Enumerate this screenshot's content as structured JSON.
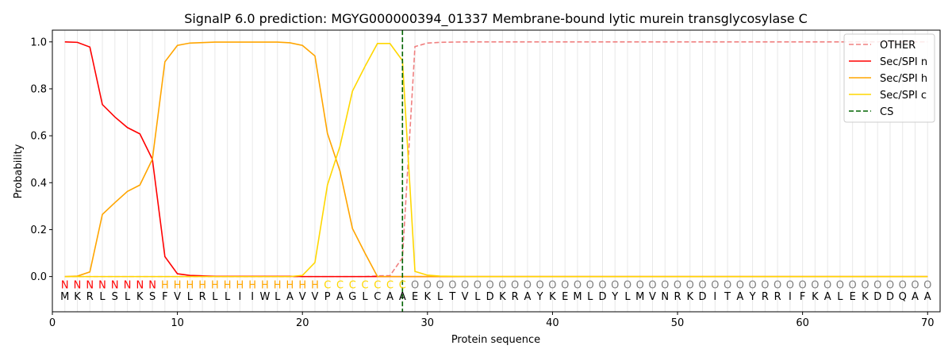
{
  "chart_data": {
    "type": "line",
    "title": "SignalP 6.0 prediction: MGYG000000394_01337 Membrane-bound lytic murein transglycosylase C",
    "xlabel": "Protein sequence",
    "ylabel": "Probability",
    "xlim": [
      0,
      71
    ],
    "ylim": [
      -0.15,
      1.05
    ],
    "x_ticks": [
      0,
      10,
      20,
      30,
      40,
      50,
      60,
      70
    ],
    "y_ticks": [
      0.0,
      0.2,
      0.4,
      0.6,
      0.8,
      1.0
    ],
    "x_tick_labels": [
      "0",
      "10",
      "20",
      "30",
      "40",
      "50",
      "60",
      "70"
    ],
    "y_tick_labels": [
      "0.0",
      "0.2",
      "0.4",
      "0.6",
      "0.8",
      "1.0"
    ],
    "grid": "vertical lines at every residue",
    "legend_position": "top-right",
    "sequence": [
      "M",
      "K",
      "R",
      "L",
      "S",
      "L",
      "K",
      "S",
      "F",
      "V",
      "L",
      "R",
      "L",
      "L",
      "I",
      "I",
      "W",
      "L",
      "A",
      "V",
      "V",
      "P",
      "A",
      "G",
      "L",
      "C",
      "A",
      "A",
      "E",
      "K",
      "L",
      "T",
      "V",
      "L",
      "D",
      "K",
      "R",
      "A",
      "Y",
      "K",
      "E",
      "M",
      "L",
      "D",
      "Y",
      "L",
      "M",
      "V",
      "N",
      "R",
      "K",
      "D",
      "I",
      "T",
      "A",
      "Y",
      "R",
      "R",
      "I",
      "F",
      "K",
      "A",
      "L",
      "E",
      "K",
      "D",
      "D",
      "Q",
      "A",
      "A"
    ],
    "labels": [
      "N",
      "N",
      "N",
      "N",
      "N",
      "N",
      "N",
      "N",
      "H",
      "H",
      "H",
      "H",
      "H",
      "H",
      "H",
      "H",
      "H",
      "H",
      "H",
      "H",
      "H",
      "C",
      "C",
      "C",
      "C",
      "C",
      "C",
      "C",
      "O",
      "O",
      "O",
      "O",
      "O",
      "O",
      "O",
      "O",
      "O",
      "O",
      "O",
      "O",
      "O",
      "O",
      "O",
      "O",
      "O",
      "O",
      "O",
      "O",
      "O",
      "O",
      "O",
      "O",
      "O",
      "O",
      "O",
      "O",
      "O",
      "O",
      "O",
      "O",
      "O",
      "O",
      "O",
      "O",
      "O",
      "O",
      "O",
      "O",
      "O",
      "O"
    ],
    "label_colors": {
      "N": "#ff0000",
      "H": "#ffa500",
      "C": "#ffd700",
      "O": "#808080"
    },
    "cleavage_site": 28,
    "series": [
      {
        "name": "OTHER",
        "color": "#f08080",
        "dash": "dashed",
        "values": [
          0,
          0,
          0,
          0,
          0,
          0,
          0,
          0,
          0,
          0,
          0,
          0,
          0,
          0,
          0,
          0,
          0,
          0,
          0,
          0,
          0,
          0,
          0,
          0,
          0,
          0.003,
          0.004,
          0.08,
          0.98,
          0.995,
          0.998,
          0.999,
          1,
          1,
          1,
          1,
          1,
          1,
          1,
          1,
          1,
          1,
          1,
          1,
          1,
          1,
          1,
          1,
          1,
          1,
          1,
          1,
          1,
          1,
          1,
          1,
          1,
          1,
          1,
          1,
          1,
          1,
          1,
          1,
          1,
          1,
          1,
          1,
          1,
          1
        ]
      },
      {
        "name": "Sec/SPI n",
        "color": "#ff0000",
        "dash": "solid",
        "values": [
          1.0,
          0.998,
          0.978,
          0.733,
          0.68,
          0.635,
          0.608,
          0.5,
          0.085,
          0.012,
          0.005,
          0.003,
          0.001,
          0.001,
          0.001,
          0.001,
          0.001,
          0.001,
          0.001,
          0,
          0,
          0,
          0,
          0,
          0,
          0,
          0,
          0,
          0,
          0,
          0,
          0,
          0,
          0,
          0,
          0,
          0,
          0,
          0,
          0,
          0,
          0,
          0,
          0,
          0,
          0,
          0,
          0,
          0,
          0,
          0,
          0,
          0,
          0,
          0,
          0,
          0,
          0,
          0,
          0,
          0,
          0,
          0,
          0,
          0,
          0,
          0,
          0,
          0,
          0
        ]
      },
      {
        "name": "Sec/SPI h",
        "color": "#ffa500",
        "dash": "solid",
        "values": [
          0.0,
          0.002,
          0.02,
          0.265,
          0.315,
          0.363,
          0.39,
          0.5,
          0.915,
          0.985,
          0.995,
          0.997,
          0.999,
          0.999,
          0.999,
          0.999,
          0.999,
          0.999,
          0.996,
          0.985,
          0.94,
          0.61,
          0.45,
          0.205,
          0.1,
          0.0,
          0.0,
          0.0,
          0.0,
          0,
          0,
          0,
          0,
          0,
          0,
          0,
          0,
          0,
          0,
          0,
          0,
          0,
          0,
          0,
          0,
          0,
          0,
          0,
          0,
          0,
          0,
          0,
          0,
          0,
          0,
          0,
          0,
          0,
          0,
          0,
          0,
          0,
          0,
          0,
          0,
          0,
          0,
          0,
          0,
          0
        ]
      },
      {
        "name": "Sec/SPI c",
        "color": "#ffd700",
        "dash": "solid",
        "values": [
          0,
          0,
          0,
          0,
          0,
          0,
          0,
          0,
          0,
          0,
          0,
          0,
          0,
          0,
          0,
          0,
          0,
          0,
          0,
          0.005,
          0.06,
          0.39,
          0.555,
          0.79,
          0.895,
          0.993,
          0.993,
          0.92,
          0.022,
          0.006,
          0.002,
          0.001,
          0,
          0,
          0,
          0,
          0,
          0,
          0,
          0,
          0,
          0,
          0,
          0,
          0,
          0,
          0,
          0,
          0,
          0,
          0,
          0,
          0,
          0,
          0,
          0,
          0,
          0,
          0,
          0,
          0,
          0,
          0,
          0,
          0,
          0,
          0,
          0,
          0,
          0
        ]
      }
    ],
    "cs_legend": {
      "name": "CS",
      "color": "#006400",
      "dash": "dashed"
    }
  }
}
